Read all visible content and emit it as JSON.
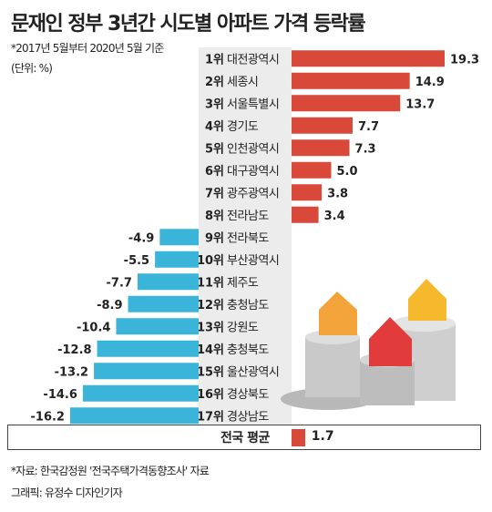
{
  "header": {
    "title": "문재인 정부 3년간 시도별 아파트 가격 등락률",
    "subtitle": "*2017년 5월부터 2020년 5월 기준",
    "unit": "(단위: %)"
  },
  "chart_data": {
    "type": "bar",
    "orientation": "horizontal",
    "categories": [
      "대전광역시",
      "세종시",
      "서울특별시",
      "경기도",
      "인천광역시",
      "대구광역시",
      "광주광역시",
      "전라남도",
      "전라북도",
      "부산광역시",
      "제주도",
      "충청남도",
      "강원도",
      "충청북도",
      "울산광역시",
      "경상북도",
      "경상남도"
    ],
    "ranks": [
      "1위",
      "2위",
      "3위",
      "4위",
      "5위",
      "6위",
      "7위",
      "8위",
      "9위",
      "10위",
      "11위",
      "12위",
      "13위",
      "14위",
      "15위",
      "16위",
      "17위"
    ],
    "values": [
      19.3,
      14.9,
      13.7,
      7.7,
      7.3,
      5.0,
      3.8,
      3.4,
      -4.9,
      -5.5,
      -7.7,
      -8.9,
      -10.4,
      -12.8,
      -13.2,
      -14.6,
      -16.2
    ],
    "value_labels": [
      "19.3",
      "14.9",
      "13.7",
      "7.7",
      "7.3",
      "5.0",
      "3.8",
      "3.4",
      "-4.9",
      "-5.5",
      "-7.7",
      "-8.9",
      "-10.4",
      "-12.8",
      "-13.2",
      "-14.6",
      "-16.2"
    ],
    "average": {
      "label": "전국 평균",
      "value": 1.7,
      "value_label": "1.7"
    },
    "colors": {
      "positive": "#d9493a",
      "negative": "#3ab5d9",
      "label_panel": "#ececec"
    }
  },
  "footer": {
    "source": "*자료: 한국감정원 '전국주택가격동향조사' 자료",
    "credit": "그래픽: 유정수 디자인기자"
  }
}
